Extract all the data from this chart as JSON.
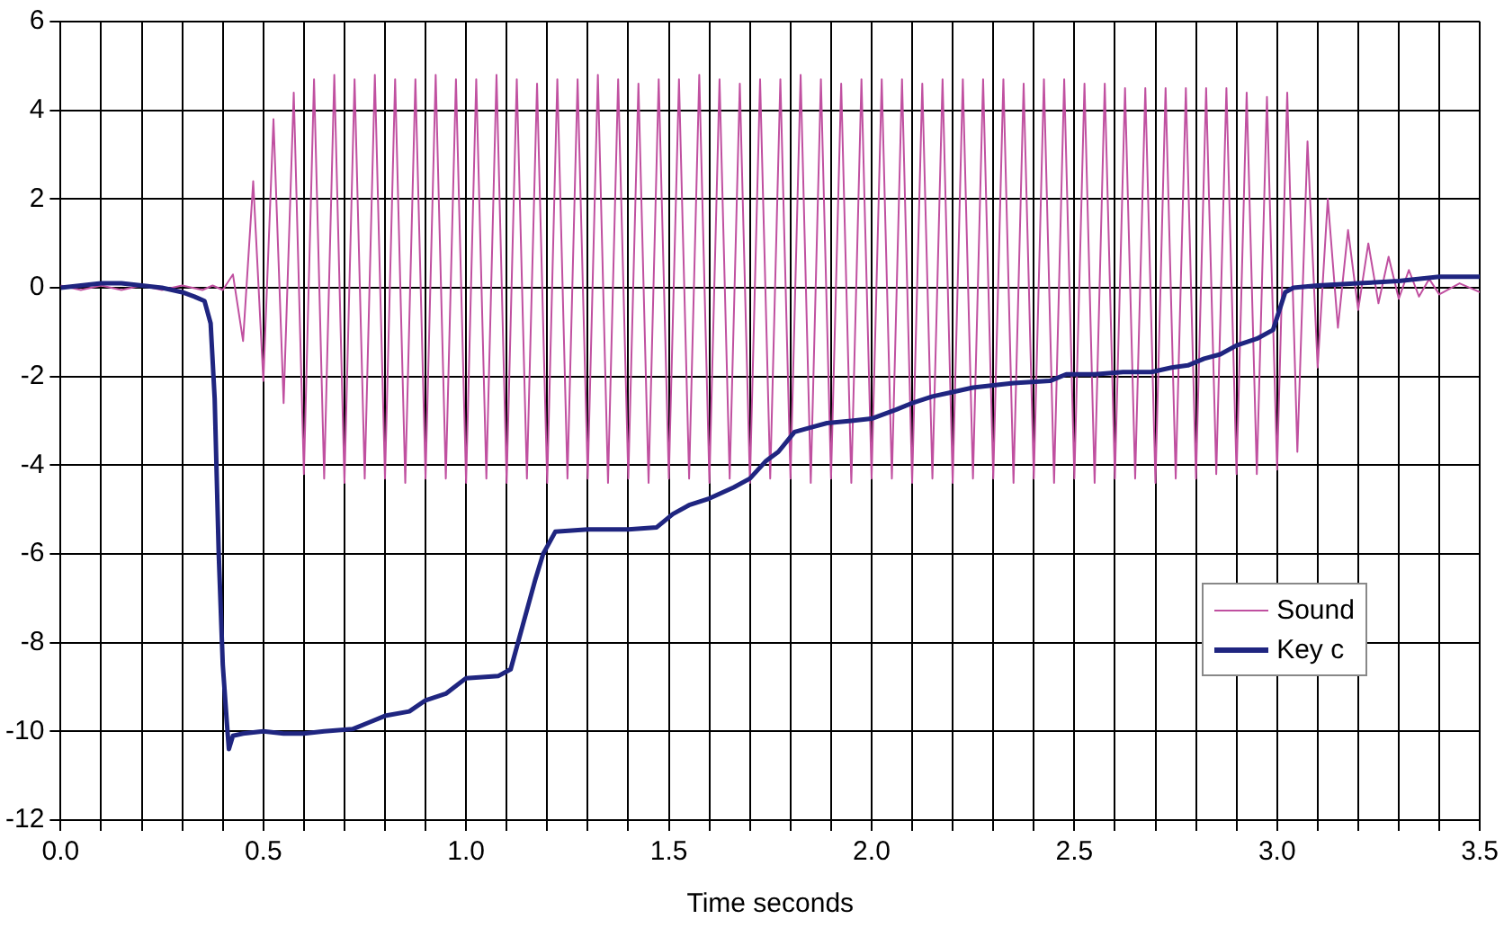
{
  "chart_data": {
    "type": "line",
    "xlabel": "Time seconds",
    "xlim": [
      0,
      3.5
    ],
    "ylim": [
      -12,
      6
    ],
    "xticks": [
      {
        "value": 0,
        "label": "0.0"
      },
      {
        "value": 0.1,
        "label": null
      },
      {
        "value": 0.2,
        "label": null
      },
      {
        "value": 0.3,
        "label": null
      },
      {
        "value": 0.4,
        "label": null
      },
      {
        "value": 0.5,
        "label": "0.5"
      },
      {
        "value": 0.6,
        "label": null
      },
      {
        "value": 0.7,
        "label": null
      },
      {
        "value": 0.8,
        "label": null
      },
      {
        "value": 0.9,
        "label": null
      },
      {
        "value": 1,
        "label": "1.0"
      },
      {
        "value": 1.1,
        "label": null
      },
      {
        "value": 1.2,
        "label": null
      },
      {
        "value": 1.3,
        "label": null
      },
      {
        "value": 1.4,
        "label": null
      },
      {
        "value": 1.5,
        "label": "1.5"
      },
      {
        "value": 1.6,
        "label": null
      },
      {
        "value": 1.7,
        "label": null
      },
      {
        "value": 1.8,
        "label": null
      },
      {
        "value": 1.9,
        "label": null
      },
      {
        "value": 2,
        "label": "2.0"
      },
      {
        "value": 2.1,
        "label": null
      },
      {
        "value": 2.2,
        "label": null
      },
      {
        "value": 2.3,
        "label": null
      },
      {
        "value": 2.4,
        "label": null
      },
      {
        "value": 2.5,
        "label": "2.5"
      },
      {
        "value": 2.6,
        "label": null
      },
      {
        "value": 2.7,
        "label": null
      },
      {
        "value": 2.8,
        "label": null
      },
      {
        "value": 2.9,
        "label": null
      },
      {
        "value": 3,
        "label": "3.0"
      },
      {
        "value": 3.1,
        "label": null
      },
      {
        "value": 3.2,
        "label": null
      },
      {
        "value": 3.3,
        "label": null
      },
      {
        "value": 3.4,
        "label": null
      },
      {
        "value": 3.5,
        "label": "3.5"
      }
    ],
    "yticks": [
      -12,
      -10,
      -8,
      -6,
      -4,
      -2,
      0,
      2,
      4,
      6
    ],
    "grid": true,
    "legend": "bottom right",
    "marker": "none",
    "line_style": "solid",
    "series": [
      {
        "name": "Sound",
        "color": "#c050a0",
        "x": [
          0,
          0.05,
          0.1,
          0.15,
          0.2,
          0.25,
          0.3,
          0.35,
          0.375,
          0.4,
          0.425,
          0.45,
          0.475,
          0.5,
          0.525,
          0.55,
          0.575,
          0.6,
          0.625,
          0.65,
          0.675,
          0.7,
          0.725,
          0.75,
          0.775,
          0.8,
          0.825,
          0.85,
          0.875,
          0.9,
          0.925,
          0.95,
          0.975,
          1,
          1.025,
          1.05,
          1.075,
          1.1,
          1.125,
          1.15,
          1.175,
          1.2,
          1.225,
          1.25,
          1.275,
          1.3,
          1.325,
          1.35,
          1.375,
          1.4,
          1.425,
          1.45,
          1.475,
          1.5,
          1.525,
          1.55,
          1.575,
          1.6,
          1.625,
          1.65,
          1.675,
          1.7,
          1.725,
          1.75,
          1.775,
          1.8,
          1.825,
          1.85,
          1.875,
          1.9,
          1.925,
          1.95,
          1.975,
          2,
          2.025,
          2.05,
          2.075,
          2.1,
          2.125,
          2.15,
          2.175,
          2.2,
          2.225,
          2.25,
          2.275,
          2.3,
          2.325,
          2.35,
          2.375,
          2.4,
          2.425,
          2.45,
          2.475,
          2.5,
          2.525,
          2.55,
          2.575,
          2.6,
          2.625,
          2.65,
          2.675,
          2.7,
          2.725,
          2.75,
          2.775,
          2.8,
          2.825,
          2.85,
          2.875,
          2.9,
          2.925,
          2.95,
          2.975,
          3,
          3.025,
          3.05,
          3.075,
          3.1,
          3.125,
          3.15,
          3.175,
          3.2,
          3.225,
          3.25,
          3.275,
          3.3,
          3.325,
          3.35,
          3.375,
          3.4,
          3.45,
          3.5
        ],
        "values": [
          0.05,
          -0.05,
          0.05,
          -0.05,
          0.05,
          -0.05,
          0.05,
          -0.05,
          0.05,
          -0.05,
          0.3,
          -1.2,
          2.4,
          -2.1,
          3.8,
          -2.6,
          4.4,
          -4.2,
          4.7,
          -4.3,
          4.8,
          -4.4,
          4.7,
          -4.3,
          4.8,
          -4.3,
          4.7,
          -4.4,
          4.7,
          -4.3,
          4.8,
          -4.3,
          4.7,
          -4.4,
          4.7,
          -4.3,
          4.8,
          -4.4,
          4.7,
          -4.3,
          4.6,
          -4.4,
          4.7,
          -4.3,
          4.7,
          -4.3,
          4.8,
          -4.4,
          4.7,
          -4.3,
          4.6,
          -4.4,
          4.7,
          -4.3,
          4.7,
          -4.3,
          4.8,
          -4.4,
          4.7,
          -4.3,
          4.6,
          -4.4,
          4.7,
          -4.3,
          4.7,
          -4.3,
          4.8,
          -4.4,
          4.7,
          -4.3,
          4.6,
          -4.4,
          4.7,
          -4.3,
          4.7,
          -4.3,
          4.7,
          -4.4,
          4.6,
          -4.3,
          4.7,
          -4.4,
          4.7,
          -4.3,
          4.7,
          -4.3,
          4.7,
          -4.4,
          4.6,
          -4.3,
          4.7,
          -4.4,
          4.7,
          -4.3,
          4.6,
          -4.4,
          4.6,
          -4.3,
          4.5,
          -4.3,
          4.5,
          -4.4,
          4.5,
          -4.3,
          4.5,
          -4.3,
          4.5,
          -4.2,
          4.5,
          -4.2,
          4.4,
          -4.2,
          4.3,
          -4.1,
          4.4,
          -3.7,
          3.3,
          -1.8,
          2.0,
          -0.9,
          1.3,
          -0.5,
          1.0,
          -0.35,
          0.7,
          -0.25,
          0.4,
          -0.2,
          0.2,
          -0.15,
          0.1,
          -0.1
        ]
      },
      {
        "name": "Key c",
        "color": "#1f2580",
        "x": [
          0,
          0.05,
          0.1,
          0.15,
          0.2,
          0.25,
          0.3,
          0.33,
          0.355,
          0.37,
          0.38,
          0.39,
          0.4,
          0.41,
          0.415,
          0.425,
          0.45,
          0.5,
          0.55,
          0.6,
          0.65,
          0.72,
          0.76,
          0.8,
          0.86,
          0.9,
          0.95,
          1.0,
          1.08,
          1.11,
          1.14,
          1.17,
          1.19,
          1.22,
          1.3,
          1.4,
          1.47,
          1.51,
          1.55,
          1.6,
          1.66,
          1.7,
          1.74,
          1.77,
          1.81,
          1.85,
          1.89,
          1.95,
          2.0,
          2.06,
          2.1,
          2.15,
          2.2,
          2.25,
          2.35,
          2.44,
          2.48,
          2.55,
          2.62,
          2.69,
          2.74,
          2.78,
          2.82,
          2.86,
          2.9,
          2.95,
          2.99,
          3.02,
          3.04,
          3.1,
          3.2,
          3.3,
          3.4,
          3.5
        ],
        "values": [
          0,
          0.05,
          0.1,
          0.1,
          0.05,
          0,
          -0.1,
          -0.2,
          -0.3,
          -0.8,
          -2.5,
          -6,
          -8.5,
          -9.8,
          -10.4,
          -10.1,
          -10.05,
          -10,
          -10.05,
          -10.05,
          -10,
          -9.95,
          -9.8,
          -9.65,
          -9.55,
          -9.3,
          -9.15,
          -8.8,
          -8.75,
          -8.6,
          -7.6,
          -6.6,
          -6.0,
          -5.5,
          -5.45,
          -5.45,
          -5.4,
          -5.1,
          -4.9,
          -4.75,
          -4.5,
          -4.3,
          -3.9,
          -3.7,
          -3.25,
          -3.15,
          -3.05,
          -3.0,
          -2.95,
          -2.75,
          -2.6,
          -2.45,
          -2.35,
          -2.25,
          -2.15,
          -2.1,
          -1.95,
          -1.95,
          -1.9,
          -1.9,
          -1.8,
          -1.75,
          -1.6,
          -1.5,
          -1.3,
          -1.15,
          -0.95,
          -0.1,
          0,
          0.05,
          0.1,
          0.15,
          0.25,
          0.25
        ]
      }
    ]
  }
}
